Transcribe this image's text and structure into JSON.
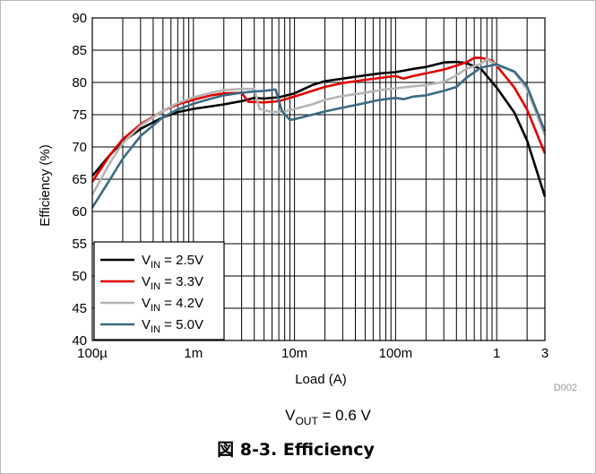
{
  "chart_data": {
    "type": "line",
    "xlabel": "Load (A)",
    "ylabel": "Efficiency (%)",
    "xscale": "log",
    "xlim": [
      0.0001,
      3
    ],
    "ylim": [
      40,
      90
    ],
    "grid": true,
    "legend_position": "bottom-left",
    "x_tick_labels": [
      "100µ",
      "1m",
      "10m",
      "100m",
      "1",
      "3"
    ],
    "y_tick_labels": [
      "40",
      "45",
      "50",
      "55",
      "60",
      "65",
      "70",
      "75",
      "80",
      "85",
      "90"
    ],
    "series": [
      {
        "name_main": "V",
        "name_sub": "IN",
        "name_value": " = 2.5V",
        "color": "#000000",
        "x": [
          0.0001,
          0.00015,
          0.0002,
          0.0003,
          0.0005,
          0.0007,
          0.001,
          0.0015,
          0.002,
          0.003,
          0.004,
          0.005,
          0.007,
          0.01,
          0.015,
          0.02,
          0.03,
          0.05,
          0.07,
          0.1,
          0.15,
          0.2,
          0.3,
          0.4,
          0.5,
          0.7,
          1,
          1.5,
          2,
          3
        ],
        "y": [
          65.5,
          68.8,
          70.8,
          72.8,
          74.6,
          75.4,
          75.9,
          76.3,
          76.6,
          77.1,
          77.6,
          77.5,
          77.7,
          78.3,
          79.6,
          80.2,
          80.6,
          81.1,
          81.4,
          81.6,
          82.1,
          82.4,
          83.1,
          83.2,
          83.0,
          82.1,
          79.2,
          75.3,
          71.0,
          62.3
        ]
      },
      {
        "name_main": "V",
        "name_sub": "IN",
        "name_value": " = 3.3V",
        "color": "#e00000",
        "x": [
          0.0001,
          0.00015,
          0.0002,
          0.0003,
          0.0005,
          0.0007,
          0.001,
          0.0015,
          0.002,
          0.003,
          0.0035,
          0.005,
          0.007,
          0.01,
          0.015,
          0.02,
          0.03,
          0.05,
          0.07,
          0.1,
          0.12,
          0.15,
          0.2,
          0.3,
          0.4,
          0.5,
          0.6,
          0.7,
          0.9,
          1,
          1.5,
          2,
          3
        ],
        "y": [
          64.6,
          68.8,
          71.2,
          73.5,
          75.6,
          76.6,
          77.3,
          78.0,
          78.3,
          78.4,
          77.0,
          76.9,
          77.1,
          77.8,
          78.7,
          79.3,
          79.9,
          80.4,
          80.7,
          81.0,
          80.6,
          81.0,
          81.4,
          82.0,
          82.6,
          83.1,
          83.8,
          83.8,
          83.4,
          82.6,
          79.2,
          75.8,
          69.0
        ]
      },
      {
        "name_main": "V",
        "name_sub": "IN",
        "name_value": " = 4.2V",
        "color": "#b5b5b5",
        "x": [
          0.0001,
          0.00015,
          0.0002,
          0.0003,
          0.0005,
          0.0007,
          0.001,
          0.0015,
          0.002,
          0.003,
          0.004,
          0.0045,
          0.006,
          0.008,
          0.01,
          0.015,
          0.02,
          0.03,
          0.05,
          0.07,
          0.1,
          0.15,
          0.2,
          0.3,
          0.4,
          0.5,
          0.7,
          0.8,
          1,
          1.5,
          2,
          3
        ],
        "y": [
          62.6,
          67.6,
          70.6,
          73.3,
          75.6,
          76.8,
          77.7,
          78.4,
          78.8,
          79.0,
          79.0,
          75.9,
          75.4,
          75.5,
          75.9,
          76.6,
          77.3,
          77.9,
          78.4,
          78.8,
          79.1,
          79.4,
          79.6,
          80.1,
          81.1,
          82.1,
          82.9,
          83.6,
          82.7,
          81.6,
          78.9,
          71.8
        ]
      },
      {
        "name_main": "V",
        "name_sub": "IN",
        "name_value": " = 5.0V",
        "color": "#3a6b85",
        "x": [
          0.0001,
          0.00015,
          0.0002,
          0.0003,
          0.0005,
          0.0007,
          0.001,
          0.0015,
          0.002,
          0.003,
          0.004,
          0.005,
          0.0065,
          0.0075,
          0.009,
          0.01,
          0.015,
          0.02,
          0.03,
          0.05,
          0.07,
          0.1,
          0.12,
          0.15,
          0.2,
          0.3,
          0.4,
          0.5,
          0.7,
          1,
          1.5,
          2,
          3
        ],
        "y": [
          60.6,
          65.0,
          68.2,
          71.7,
          74.6,
          75.8,
          76.7,
          77.5,
          78.0,
          78.4,
          78.6,
          78.7,
          78.9,
          75.6,
          74.2,
          74.3,
          75.0,
          75.5,
          76.1,
          76.8,
          77.3,
          77.6,
          77.4,
          77.8,
          78.0,
          78.7,
          79.3,
          80.7,
          82.3,
          82.8,
          81.7,
          79.4,
          72.4
        ]
      }
    ]
  },
  "figure_id": "D002",
  "condition": {
    "main": "V",
    "sub": "OUT",
    "value": " = 0.6 V"
  },
  "caption": "図 8-3. Efficiency"
}
